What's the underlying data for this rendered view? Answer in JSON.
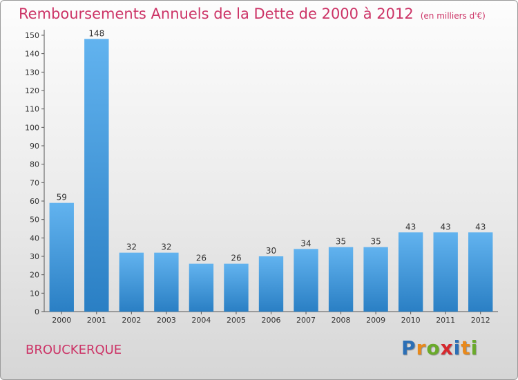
{
  "title": "Remboursements Annuels de la Dette de 2000 à 2012",
  "unit": "(en milliers d'€)",
  "city": "BROUCKERQUE",
  "logo": {
    "letters": [
      "P",
      "r",
      "o",
      "x",
      "i",
      "t",
      "i"
    ],
    "colors": [
      "#2b6fb6",
      "#e8891c",
      "#6aaa2a",
      "#d6282e",
      "#2b6fb6",
      "#e8891c",
      "#6aaa2a"
    ]
  },
  "colors": {
    "bar_light": "#62b3ef",
    "bar_dark": "#2a7fc4",
    "title": "#cc3366"
  },
  "chart_data": {
    "type": "bar",
    "categories": [
      "2000",
      "2001",
      "2002",
      "2003",
      "2004",
      "2005",
      "2006",
      "2007",
      "2008",
      "2009",
      "2010",
      "2011",
      "2012"
    ],
    "values": [
      59,
      148,
      32,
      32,
      26,
      26,
      30,
      34,
      35,
      35,
      43,
      43,
      43
    ],
    "ylim": [
      0,
      150
    ],
    "yticks": [
      0,
      10,
      20,
      30,
      40,
      50,
      60,
      70,
      80,
      90,
      100,
      110,
      120,
      130,
      140,
      150
    ],
    "xlabel": "",
    "ylabel": "",
    "grid": false
  }
}
